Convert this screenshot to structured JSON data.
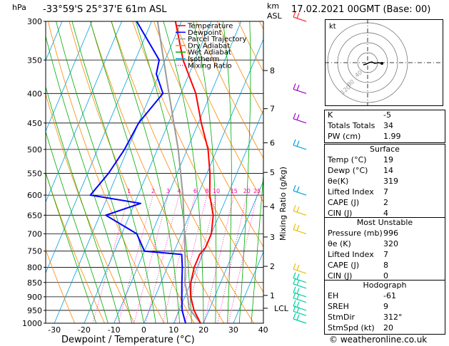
{
  "header": {
    "hpa_label": "hPa",
    "location": "-33°59'S  25°37'E  61m ASL",
    "km_label": "km",
    "asl_label": "ASL",
    "datetime": "17.02.2021  00GMT  (Base: 00)"
  },
  "footer": {
    "credit": "© weatheronline.co.uk"
  },
  "chart_data": {
    "type": "skew-t",
    "xlabel": "Dewpoint / Temperature (°C)",
    "ylabel_right": "Mixing Ratio (g/kg)",
    "pressure_ticks": [
      300,
      350,
      400,
      450,
      500,
      550,
      600,
      650,
      700,
      750,
      800,
      850,
      900,
      950,
      1000
    ],
    "temp_ticks": [
      -30,
      -20,
      -10,
      0,
      10,
      20,
      30,
      40
    ],
    "km_ticks": [
      {
        "label": "8",
        "p": 365
      },
      {
        "label": "7",
        "p": 425
      },
      {
        "label": "6",
        "p": 487
      },
      {
        "label": "5",
        "p": 548
      },
      {
        "label": "4",
        "p": 628
      },
      {
        "label": "3",
        "p": 709
      },
      {
        "label": "2",
        "p": 797
      },
      {
        "label": "1",
        "p": 895
      }
    ],
    "lcl": {
      "label": "LCL",
      "p": 942
    },
    "mixing_ratio_labels": [
      "1",
      "2",
      "3",
      "4",
      "6",
      "8",
      "10",
      "15",
      "20",
      "25"
    ],
    "mixing_ratio_values": [
      1,
      2,
      3,
      4,
      6,
      8,
      10,
      15,
      20,
      25
    ],
    "legend": [
      {
        "name": "Temperature",
        "color": "#ff0000"
      },
      {
        "name": "Dewpoint",
        "color": "#0000ff"
      },
      {
        "name": "Parcel Trajectory",
        "color": "#999999"
      },
      {
        "name": "Dry Adiabat",
        "color": "#ff8800"
      },
      {
        "name": "Wet Adiabat",
        "color": "#00aa00"
      },
      {
        "name": "Isotherm",
        "color": "#00a0e0"
      },
      {
        "name": "Mixing Ratio",
        "color": "#ff00aa"
      }
    ],
    "temperature": [
      [
        1000,
        19
      ],
      [
        950,
        15
      ],
      [
        900,
        12
      ],
      [
        850,
        10
      ],
      [
        800,
        9
      ],
      [
        760,
        9
      ],
      [
        740,
        10
      ],
      [
        700,
        10
      ],
      [
        650,
        8
      ],
      [
        600,
        4
      ],
      [
        550,
        1
      ],
      [
        500,
        -3
      ],
      [
        450,
        -9
      ],
      [
        400,
        -15
      ],
      [
        350,
        -24
      ],
      [
        300,
        -32
      ]
    ],
    "dewpoint": [
      [
        1000,
        14
      ],
      [
        950,
        11
      ],
      [
        900,
        9
      ],
      [
        850,
        7
      ],
      [
        800,
        5
      ],
      [
        760,
        3
      ],
      [
        750,
        -10
      ],
      [
        700,
        -15
      ],
      [
        650,
        -28
      ],
      [
        620,
        -18
      ],
      [
        600,
        -36
      ],
      [
        550,
        -33
      ],
      [
        500,
        -31
      ],
      [
        450,
        -30
      ],
      [
        400,
        -26
      ],
      [
        370,
        -31
      ],
      [
        350,
        -32
      ],
      [
        300,
        -45
      ]
    ],
    "parcel": [
      [
        1000,
        19
      ],
      [
        942,
        13
      ],
      [
        900,
        11
      ],
      [
        850,
        8
      ],
      [
        800,
        6
      ],
      [
        700,
        1
      ],
      [
        600,
        -5
      ],
      [
        500,
        -13
      ],
      [
        400,
        -24
      ],
      [
        300,
        -38
      ]
    ],
    "wind_barbs_p": [
      1000,
      970,
      950,
      920,
      900,
      870,
      850,
      820,
      700,
      650,
      600,
      500,
      450,
      400,
      300
    ]
  },
  "indices": [
    {
      "label": "K",
      "value": "-5"
    },
    {
      "label": "Totals Totals",
      "value": "34"
    },
    {
      "label": "PW (cm)",
      "value": "1.99"
    }
  ],
  "surface": {
    "title": "Surface",
    "rows": [
      {
        "label": "Temp (°C)",
        "value": "19"
      },
      {
        "label": "Dewp (°C)",
        "value": "14"
      },
      {
        "label": "θe(K)",
        "value": "319"
      },
      {
        "label": "Lifted Index",
        "value": "7"
      },
      {
        "label": "CAPE (J)",
        "value": "2"
      },
      {
        "label": "CIN (J)",
        "value": "4"
      }
    ]
  },
  "most_unstable": {
    "title": "Most Unstable",
    "rows": [
      {
        "label": "Pressure (mb)",
        "value": "996"
      },
      {
        "label": "θe (K)",
        "value": "320"
      },
      {
        "label": "Lifted Index",
        "value": "7"
      },
      {
        "label": "CAPE (J)",
        "value": "8"
      },
      {
        "label": "CIN (J)",
        "value": "0"
      }
    ]
  },
  "hodograph": {
    "title": "Hodograph",
    "kt_label": "kt",
    "ring_labels": [
      "120",
      "80",
      "40"
    ],
    "rows": [
      {
        "label": "EH",
        "value": "-61"
      },
      {
        "label": "SREH",
        "value": "9"
      },
      {
        "label": "StmDir",
        "value": "312°"
      },
      {
        "label": "StmSpd (kt)",
        "value": "20"
      }
    ]
  }
}
